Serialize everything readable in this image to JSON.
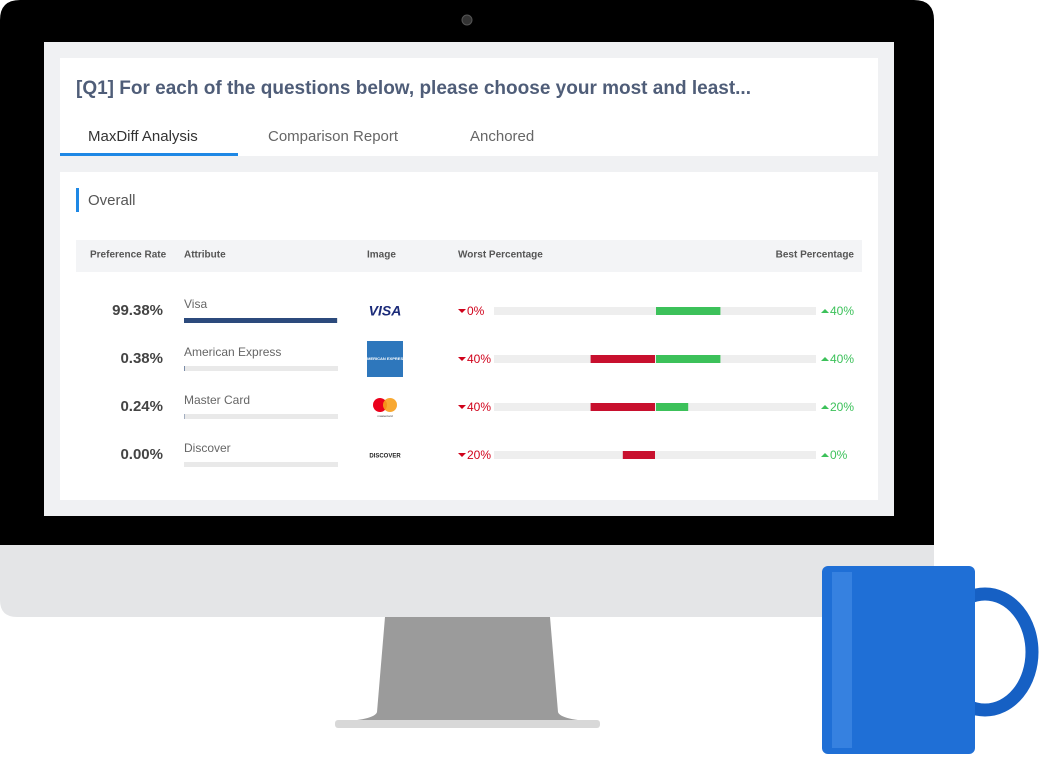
{
  "header": {
    "title": "[Q1] For each of the questions below, please choose your most and least..."
  },
  "tabs": [
    "MaxDiff Analysis",
    "Comparison Report",
    "Anchored"
  ],
  "active_tab": 0,
  "section": {
    "title": "Overall"
  },
  "table": {
    "columns": [
      "Preference Rate",
      "Attribute",
      "Image",
      "Worst Percentage",
      "Best Percentage"
    ],
    "rows": [
      {
        "preference_rate": {
          "value": 99.38,
          "label": "99.38%"
        },
        "attribute": "Visa",
        "logo": "VISA",
        "worst": {
          "value": 0,
          "label": "0%"
        },
        "best": {
          "value": 40,
          "label": "40%"
        }
      },
      {
        "preference_rate": {
          "value": 0.38,
          "label": "0.38%"
        },
        "attribute": "American Express",
        "logo": "AMERICAN EXPRESS",
        "worst": {
          "value": 40,
          "label": "40%"
        },
        "best": {
          "value": 40,
          "label": "40%"
        }
      },
      {
        "preference_rate": {
          "value": 0.24,
          "label": "0.24%"
        },
        "attribute": "Master Card",
        "logo": "mastercard",
        "worst": {
          "value": 40,
          "label": "40%"
        },
        "best": {
          "value": 20,
          "label": "20%"
        }
      },
      {
        "preference_rate": {
          "value": 0.0,
          "label": "0.00%"
        },
        "attribute": "Discover",
        "logo": "DISCOVER",
        "worst": {
          "value": 20,
          "label": "20%"
        },
        "best": {
          "value": 0,
          "label": "0%"
        }
      }
    ]
  }
}
